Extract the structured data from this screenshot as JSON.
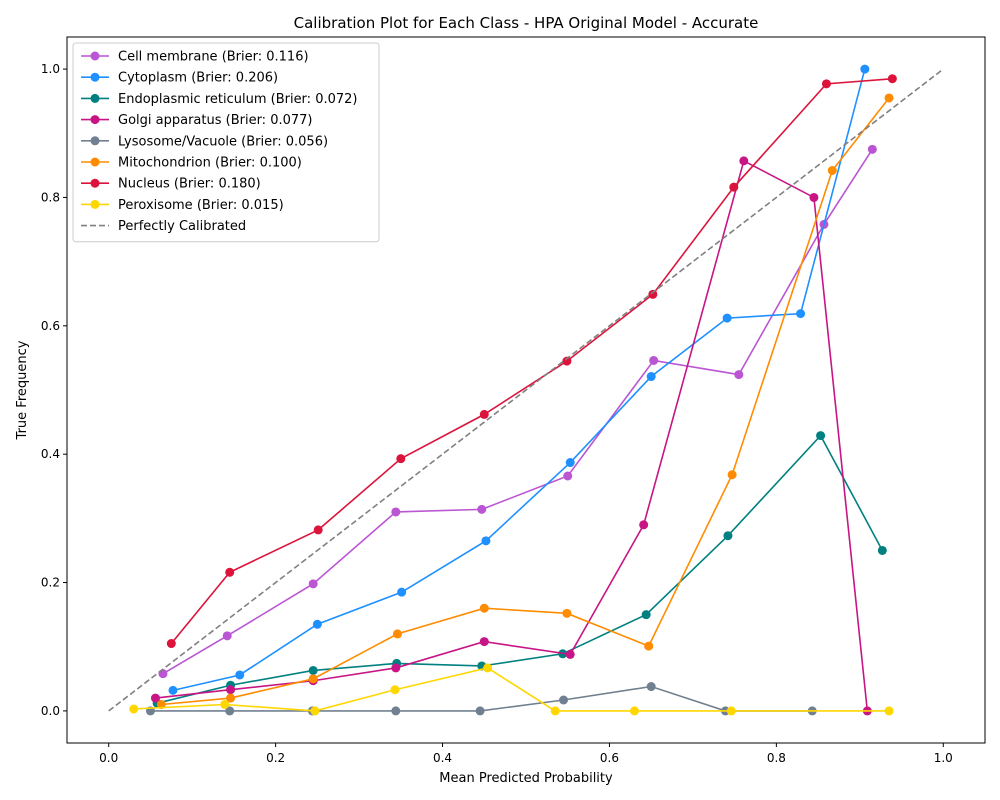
{
  "chart_data": {
    "type": "line",
    "title": "Calibration Plot for Each Class - HPA Original Model - Accurate",
    "xlabel": "Mean Predicted Probability",
    "ylabel": "True Frequency",
    "xlim": [
      -0.05,
      1.05
    ],
    "ylim": [
      -0.05,
      1.05
    ],
    "xticks": [
      "0.0",
      "0.2",
      "0.4",
      "0.6",
      "0.8",
      "1.0"
    ],
    "yticks": [
      "0.0",
      "0.2",
      "0.4",
      "0.6",
      "0.8",
      "1.0"
    ],
    "grid": false,
    "legend_position": "top-left",
    "series": [
      {
        "name": "Cell membrane (Brier: 0.116)",
        "color": "#ba55d3",
        "x": [
          0.065,
          0.142,
          0.245,
          0.344,
          0.447,
          0.55,
          0.653,
          0.755,
          0.857,
          0.915
        ],
        "y": [
          0.058,
          0.117,
          0.198,
          0.31,
          0.314,
          0.366,
          0.546,
          0.524,
          0.758,
          0.875
        ]
      },
      {
        "name": "Cytoplasm (Brier: 0.206)",
        "color": "#1e90ff",
        "x": [
          0.077,
          0.157,
          0.25,
          0.351,
          0.452,
          0.553,
          0.65,
          0.741,
          0.829,
          0.906
        ],
        "y": [
          0.032,
          0.056,
          0.135,
          0.185,
          0.265,
          0.387,
          0.521,
          0.612,
          0.619,
          1.0
        ]
      },
      {
        "name": "Endoplasmic reticulum (Brier: 0.072)",
        "color": "#008080",
        "x": [
          0.058,
          0.146,
          0.245,
          0.345,
          0.447,
          0.544,
          0.644,
          0.742,
          0.853,
          0.927
        ],
        "y": [
          0.012,
          0.04,
          0.063,
          0.074,
          0.07,
          0.089,
          0.15,
          0.273,
          0.429,
          0.25
        ]
      },
      {
        "name": "Golgi apparatus (Brier: 0.077)",
        "color": "#c71585",
        "x": [
          0.056,
          0.146,
          0.245,
          0.344,
          0.45,
          0.553,
          0.641,
          0.761,
          0.845,
          0.909
        ],
        "y": [
          0.02,
          0.033,
          0.047,
          0.067,
          0.108,
          0.088,
          0.29,
          0.857,
          0.8,
          0.0
        ]
      },
      {
        "name": "Lysosome/Vacuole (Brier: 0.056)",
        "color": "#708090",
        "x": [
          0.05,
          0.145,
          0.244,
          0.344,
          0.445,
          0.545,
          0.65,
          0.739,
          0.843
        ],
        "y": [
          0.0,
          0.0,
          0.0,
          0.0,
          0.0,
          0.017,
          0.038,
          0.0,
          0.0
        ]
      },
      {
        "name": "Mitochondrion (Brier: 0.100)",
        "color": "#ff8c00",
        "x": [
          0.063,
          0.146,
          0.245,
          0.346,
          0.45,
          0.549,
          0.647,
          0.747,
          0.867,
          0.935
        ],
        "y": [
          0.01,
          0.02,
          0.05,
          0.12,
          0.16,
          0.152,
          0.101,
          0.368,
          0.842,
          0.955
        ]
      },
      {
        "name": "Nucleus (Brier: 0.180)",
        "color": "#dc143c",
        "x": [
          0.075,
          0.145,
          0.251,
          0.35,
          0.45,
          0.549,
          0.652,
          0.749,
          0.86,
          0.939
        ],
        "y": [
          0.105,
          0.216,
          0.282,
          0.393,
          0.462,
          0.545,
          0.649,
          0.816,
          0.977,
          0.985
        ]
      },
      {
        "name": "Peroxisome (Brier: 0.015)",
        "color": "#ffd700",
        "x": [
          0.03,
          0.139,
          0.247,
          0.343,
          0.454,
          0.535,
          0.63,
          0.746,
          0.935
        ],
        "y": [
          0.003,
          0.01,
          0.0,
          0.033,
          0.067,
          0.0,
          0.0,
          0.0,
          0.0
        ]
      }
    ],
    "reference_line": {
      "name": "Perfectly Calibrated",
      "color": "#808080",
      "x": [
        0,
        1
      ],
      "y": [
        0,
        1
      ]
    }
  }
}
